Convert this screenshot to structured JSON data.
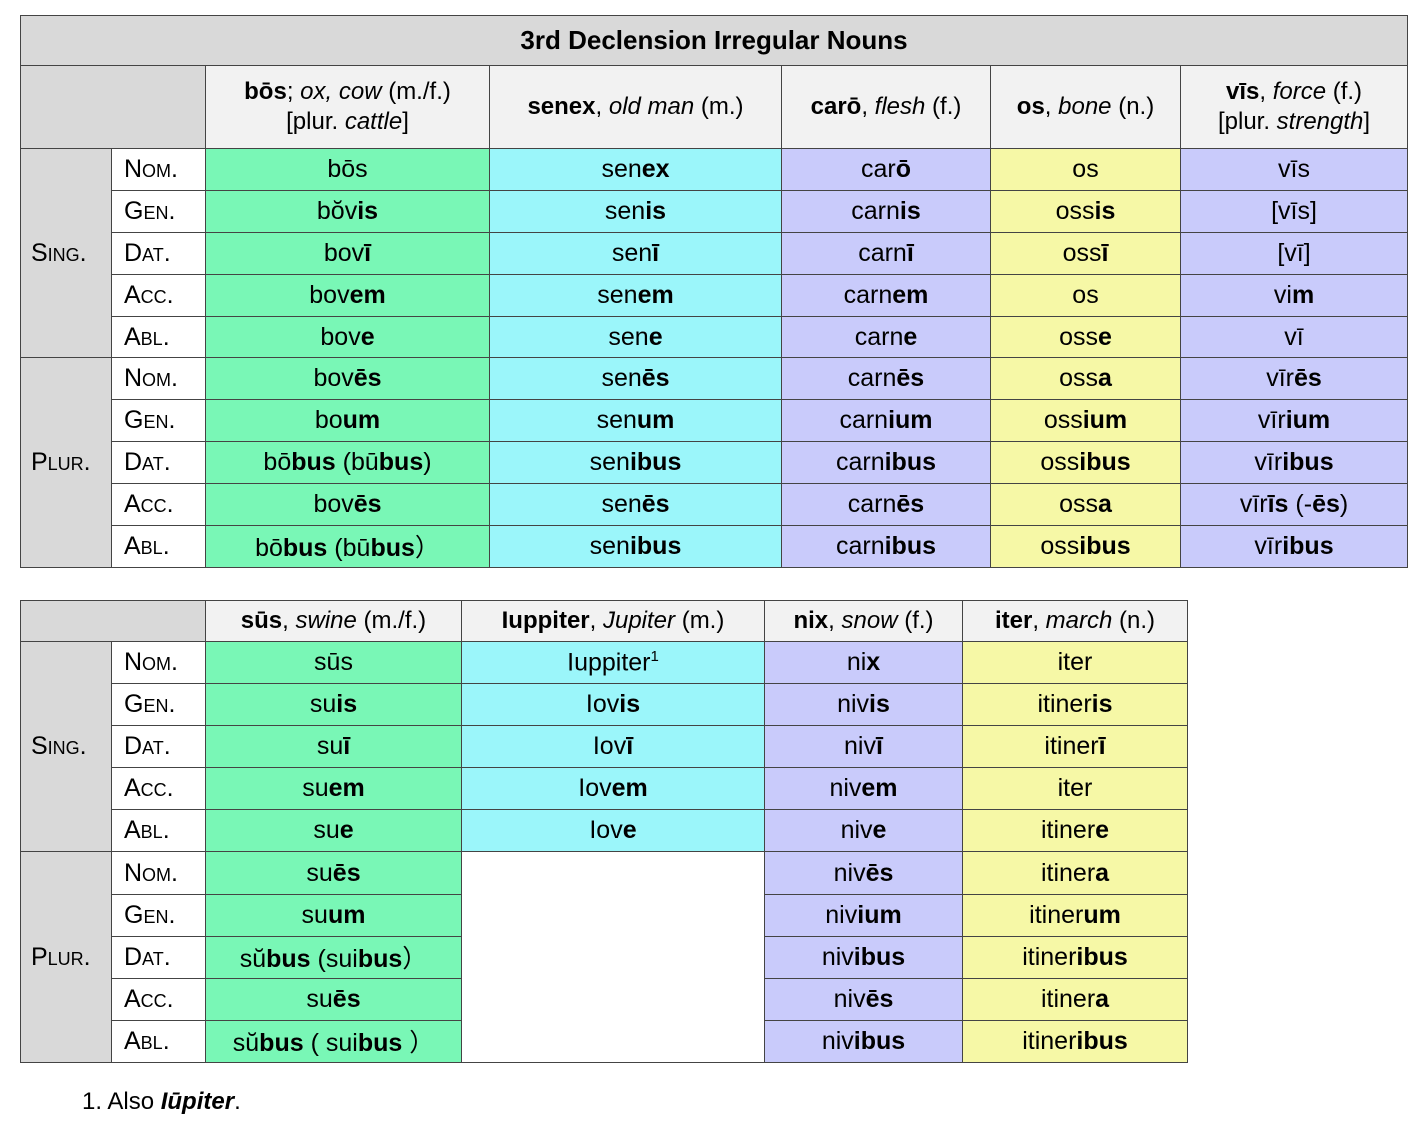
{
  "table1": {
    "title": "3rd Declension Irregular Nouns",
    "columns": [
      [
        [
          [
            "bōs",
            "bold"
          ],
          [
            "; ",
            "plain"
          ],
          [
            "ox, cow",
            "italic"
          ],
          [
            " (m./f.)",
            "plain"
          ]
        ],
        [
          [
            "[plur. ",
            "plain"
          ],
          [
            "cattle",
            "italic"
          ],
          [
            "]",
            "plain"
          ]
        ]
      ],
      [
        [
          [
            "senex",
            "bold"
          ],
          [
            ", ",
            "plain"
          ],
          [
            "old man",
            "italic"
          ],
          [
            " (m.)",
            "plain"
          ]
        ]
      ],
      [
        [
          [
            "carō",
            "bold"
          ],
          [
            ", ",
            "plain"
          ],
          [
            "flesh",
            "italic"
          ],
          [
            " (f.)",
            "plain"
          ]
        ]
      ],
      [
        [
          [
            "os",
            "bold"
          ],
          [
            ", ",
            "plain"
          ],
          [
            "bone",
            "italic"
          ],
          [
            " (n.)",
            "plain"
          ]
        ]
      ],
      [
        [
          [
            "vīs",
            "bold"
          ],
          [
            ", ",
            "plain"
          ],
          [
            "force",
            "italic"
          ],
          [
            " (f.)",
            "plain"
          ]
        ],
        [
          [
            "[plur. ",
            "plain"
          ],
          [
            "strength",
            "italic"
          ],
          [
            "]",
            "plain"
          ]
        ]
      ]
    ],
    "colors": [
      "#79f7b6",
      "#9bf6fa",
      "#c9cbfb",
      "#f6f8a6",
      "#c9cbfb"
    ],
    "groups": [
      {
        "label": "Sing.",
        "cases": [
          "Nom.",
          "Gen.",
          "Dat.",
          "Acc.",
          "Abl."
        ],
        "rows": [
          [
            [
              "bōs"
            ],
            [
              "sen",
              "ex"
            ],
            [
              "car",
              "ō"
            ],
            [
              "os"
            ],
            [
              "vīs"
            ]
          ],
          [
            [
              "bŏv",
              "is"
            ],
            [
              "sen",
              "is"
            ],
            [
              "carn",
              "is"
            ],
            [
              "oss",
              "is"
            ],
            [
              "[vīs]"
            ]
          ],
          [
            [
              "bov",
              "ī"
            ],
            [
              "sen",
              "ī"
            ],
            [
              "carn",
              "ī"
            ],
            [
              "oss",
              "ī"
            ],
            [
              "[vī]"
            ]
          ],
          [
            [
              "bov",
              "em"
            ],
            [
              "sen",
              "em"
            ],
            [
              "carn",
              "em"
            ],
            [
              "os"
            ],
            [
              "vi",
              "m"
            ]
          ],
          [
            [
              "bov",
              "e"
            ],
            [
              "sen",
              "e"
            ],
            [
              "carn",
              "e"
            ],
            [
              "oss",
              "e"
            ],
            [
              "vī"
            ]
          ]
        ]
      },
      {
        "label": "Plur.",
        "cases": [
          "Nom.",
          "Gen.",
          "Dat.",
          "Acc.",
          "Abl."
        ],
        "rows": [
          [
            [
              "bov",
              "ēs"
            ],
            [
              "sen",
              "ēs"
            ],
            [
              "carn",
              "ēs"
            ],
            [
              "oss",
              "a"
            ],
            [
              "vīr",
              "ēs"
            ]
          ],
          [
            [
              "bo",
              "um"
            ],
            [
              "sen",
              "um"
            ],
            [
              "carn",
              "ium"
            ],
            [
              "oss",
              "ium"
            ],
            [
              "vīr",
              "ium"
            ]
          ],
          [
            [
              "bō",
              "bus",
              " (bū",
              "bus",
              ")"
            ],
            [
              "sen",
              "ibus"
            ],
            [
              "carn",
              "ibus"
            ],
            [
              "oss",
              "ibus"
            ],
            [
              "vīr",
              "ibus"
            ]
          ],
          [
            [
              "bov",
              "ēs"
            ],
            [
              "sen",
              "ēs"
            ],
            [
              "carn",
              "ēs"
            ],
            [
              "oss",
              "a"
            ],
            [
              "vīr",
              "īs",
              " (-",
              "ēs",
              ")"
            ]
          ],
          [
            [
              "bō",
              "bus",
              " (bū",
              "bus",
              "）"
            ],
            [
              "sen",
              "ibus"
            ],
            [
              "carn",
              "ibus"
            ],
            [
              "oss",
              "ibus"
            ],
            [
              "vīr",
              "ibus"
            ]
          ]
        ]
      }
    ]
  },
  "table2": {
    "columns": [
      [
        [
          [
            "sūs",
            "bold"
          ],
          [
            ", ",
            "plain"
          ],
          [
            "swine",
            "italic"
          ],
          [
            " (m./f.)",
            "plain"
          ]
        ]
      ],
      [
        [
          [
            "Iuppiter",
            "bold"
          ],
          [
            ", ",
            "plain"
          ],
          [
            "Jupiter",
            "italic"
          ],
          [
            " (m.)",
            "plain"
          ]
        ]
      ],
      [
        [
          [
            "nix",
            "bold"
          ],
          [
            ", ",
            "plain"
          ],
          [
            "snow",
            "italic"
          ],
          [
            " (f.)",
            "plain"
          ]
        ]
      ],
      [
        [
          [
            "iter",
            "bold"
          ],
          [
            ", ",
            "plain"
          ],
          [
            "march",
            "italic"
          ],
          [
            " (n.)",
            "plain"
          ]
        ]
      ]
    ],
    "colors": [
      "#79f7b6",
      "#9bf6fa",
      "#c9cbfb",
      "#f6f8a6"
    ],
    "groups": [
      {
        "label": "Sing.",
        "cases": [
          "Nom.",
          "Gen.",
          "Dat.",
          "Acc.",
          "Abl."
        ],
        "rows": [
          [
            [
              "sūs"
            ],
            {
              "parts": [
                "Iuppiter"
              ],
              "sup": "1"
            },
            [
              "ni",
              "x"
            ],
            [
              "iter"
            ]
          ],
          [
            [
              "su",
              "is"
            ],
            [
              "Iov",
              "is"
            ],
            [
              "niv",
              "is"
            ],
            [
              "itiner",
              "is"
            ]
          ],
          [
            [
              "su",
              "ī"
            ],
            [
              "Iov",
              "ī"
            ],
            [
              "niv",
              "ī"
            ],
            [
              "itiner",
              "ī"
            ]
          ],
          [
            [
              "su",
              "em"
            ],
            [
              "Iov",
              "em"
            ],
            [
              "niv",
              "em"
            ],
            [
              "iter"
            ]
          ],
          [
            [
              "su",
              "e"
            ],
            [
              "Iov",
              "e"
            ],
            [
              "niv",
              "e"
            ],
            [
              "itiner",
              "e"
            ]
          ]
        ]
      },
      {
        "label": "Plur.",
        "cases": [
          "Nom.",
          "Gen.",
          "Dat.",
          "Acc.",
          "Abl."
        ],
        "rows": [
          [
            [
              "su",
              "ēs"
            ],
            null,
            [
              "niv",
              "ēs"
            ],
            [
              "itiner",
              "a"
            ]
          ],
          [
            [
              "su",
              "um"
            ],
            null,
            [
              "niv",
              "ium"
            ],
            [
              "itiner",
              "um"
            ]
          ],
          [
            [
              "sŭ",
              "bus",
              " (sui",
              "bus",
              "）"
            ],
            null,
            [
              "niv",
              "ibus"
            ],
            [
              "itiner",
              "ibus"
            ]
          ],
          [
            [
              "su",
              "ēs"
            ],
            null,
            [
              "niv",
              "ēs"
            ],
            [
              "itiner",
              "a"
            ]
          ],
          [
            [
              "sŭ",
              "bus",
              " ( sui",
              "bus",
              " ）"
            ],
            null,
            [
              "niv",
              "ibus"
            ],
            [
              "itiner",
              "ibus"
            ]
          ]
        ]
      }
    ]
  },
  "footnote": [
    [
      "1. Also ",
      "plain"
    ],
    [
      "Iūpiter",
      "bold-italic"
    ],
    [
      ".",
      "plain"
    ]
  ]
}
